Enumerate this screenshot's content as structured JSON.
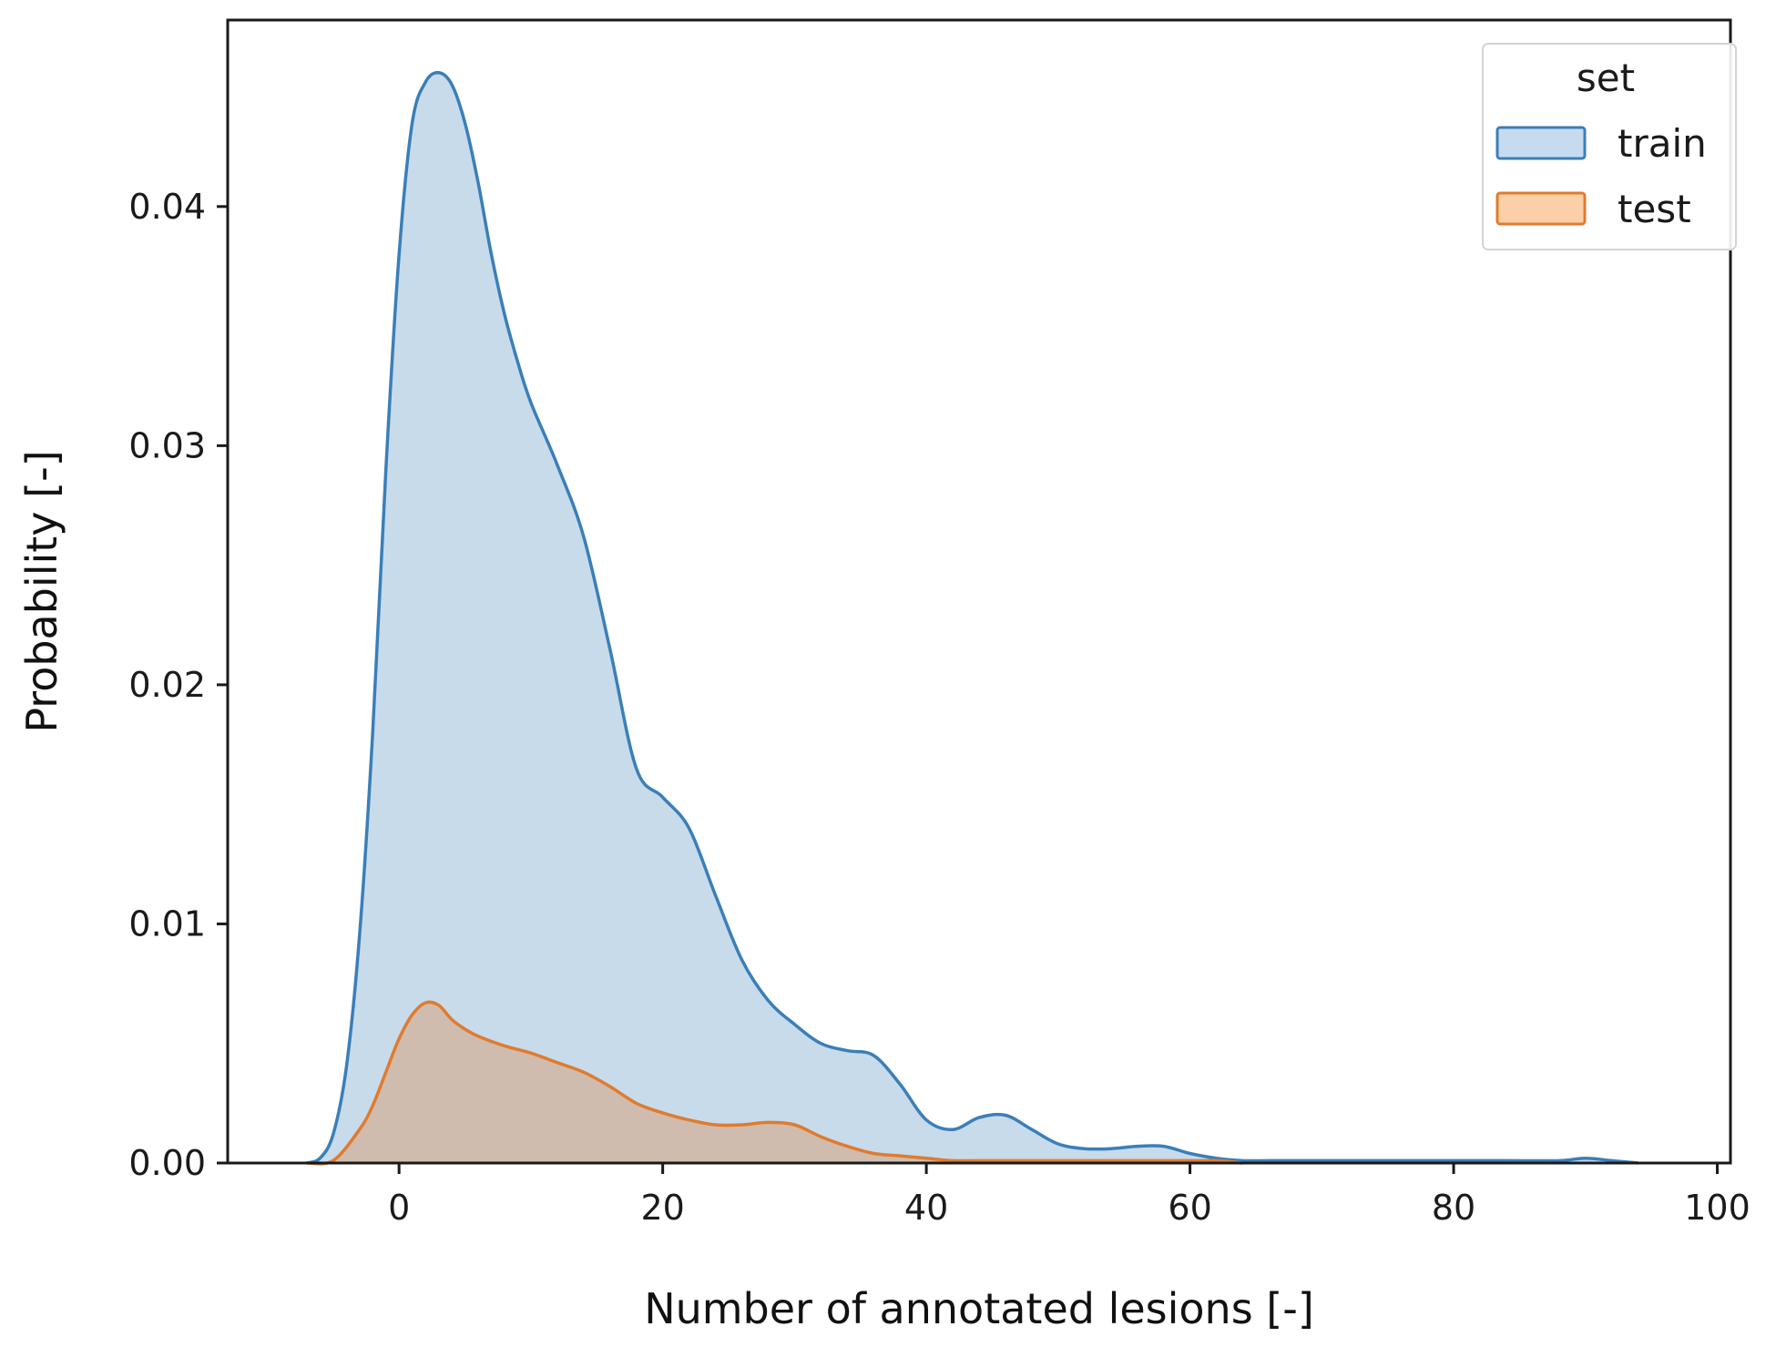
{
  "chart_data": {
    "type": "area",
    "title": "",
    "xlabel": "Number of annotated lesions [-]",
    "ylabel": "Probability [-]",
    "xlim": [
      -13,
      101
    ],
    "ylim": [
      0,
      0.0478
    ],
    "xticks": [
      0,
      20,
      40,
      60,
      80,
      100
    ],
    "xtick_labels": [
      "0",
      "20",
      "40",
      "60",
      "80",
      "100"
    ],
    "yticks": [
      0,
      0.01,
      0.02,
      0.03,
      0.04
    ],
    "ytick_labels": [
      "0.00",
      "0.01",
      "0.02",
      "0.03",
      "0.04"
    ],
    "grid": false,
    "legend": {
      "title": "set",
      "placement": "top-right"
    },
    "series": [
      {
        "name": "train",
        "stroke": "#3a7fb8",
        "fill": "#c6dbef",
        "x": [
          -7,
          -6,
          -5,
          -4,
          -3,
          -2,
          -1,
          0,
          1,
          2,
          3,
          4,
          5,
          6,
          7,
          8,
          9,
          10,
          12,
          14,
          16,
          18,
          20,
          22,
          24,
          26,
          28,
          30,
          32,
          34,
          36,
          38,
          40,
          42,
          44,
          46,
          48,
          50,
          52,
          54,
          56,
          58,
          60,
          62,
          64,
          66,
          68,
          70,
          72,
          74,
          76,
          80,
          84,
          88,
          90,
          92,
          94
        ],
        "y": [
          0,
          0.0002,
          0.0012,
          0.004,
          0.0095,
          0.018,
          0.029,
          0.038,
          0.0435,
          0.0452,
          0.0456,
          0.0451,
          0.0435,
          0.041,
          0.038,
          0.0355,
          0.0335,
          0.0318,
          0.0292,
          0.0262,
          0.0215,
          0.0165,
          0.0153,
          0.014,
          0.0112,
          0.0085,
          0.0068,
          0.0058,
          0.005,
          0.0047,
          0.0045,
          0.0033,
          0.0018,
          0.0014,
          0.0019,
          0.002,
          0.0014,
          0.0008,
          0.0006,
          0.0006,
          0.0007,
          0.0007,
          0.0004,
          0.0002,
          0.0001,
          0.0001,
          0.0001,
          0.0001,
          0.0001,
          0.0001,
          0.0001,
          0.0001,
          0.0001,
          0.0001,
          0.0002,
          0.0001,
          0
        ]
      },
      {
        "name": "test",
        "stroke": "#e07b2e",
        "fill": "#fbd0a8",
        "x": [
          -7,
          -5,
          -3,
          -2,
          -1,
          0,
          1,
          2,
          3,
          4,
          5,
          6,
          8,
          10,
          12,
          14,
          16,
          18,
          20,
          22,
          24,
          26,
          28,
          30,
          32,
          34,
          36,
          38,
          40,
          42,
          44,
          50,
          60,
          62,
          64
        ],
        "y": [
          0,
          0.0001,
          0.0014,
          0.0024,
          0.0038,
          0.0052,
          0.0062,
          0.0067,
          0.0066,
          0.006,
          0.0056,
          0.0053,
          0.0049,
          0.0046,
          0.0042,
          0.0038,
          0.0032,
          0.0025,
          0.0021,
          0.0018,
          0.0016,
          0.0016,
          0.0017,
          0.0016,
          0.0011,
          0.0007,
          0.0004,
          0.0003,
          0.0002,
          0.0001,
          0.0001,
          0.0001,
          0.0001,
          0.0001,
          0
        ]
      }
    ]
  }
}
